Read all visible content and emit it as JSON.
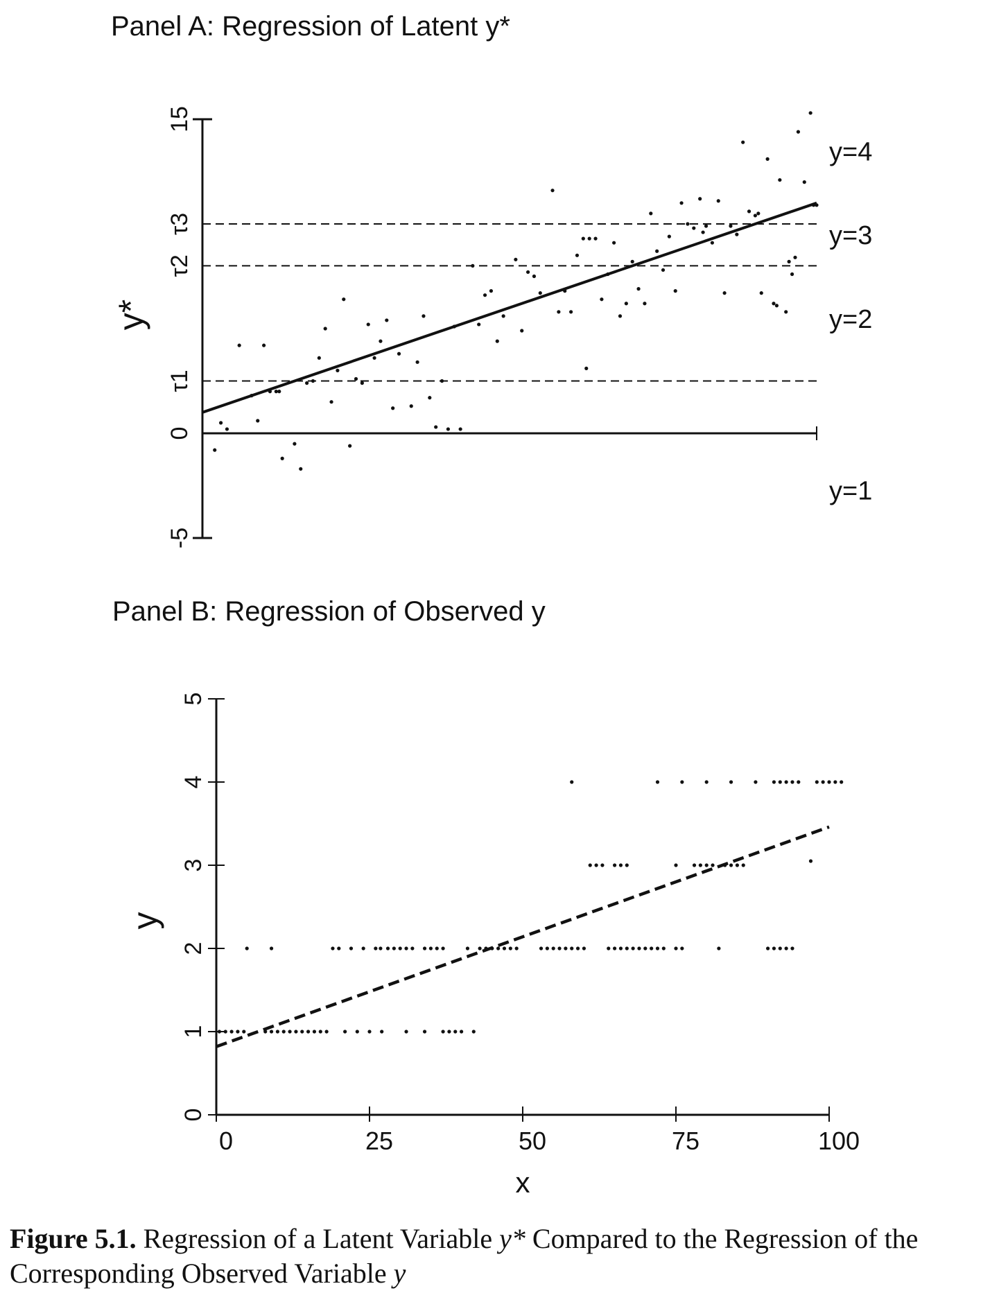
{
  "figure": {
    "caption_label": "Figure 5.1.",
    "caption_text_1": " Regression of a Latent Variable ",
    "caption_var_latent": "y*",
    "caption_text_2": " Compared to the Regression of the Corresponding Observed Variable ",
    "caption_var_observed": "y"
  },
  "chart_data": [
    {
      "type": "scatter",
      "title": "Panel A: Regression of Latent y*",
      "xlabel": "",
      "ylabel": "y*",
      "xlim": [
        0,
        100
      ],
      "ylim": [
        -5,
        15
      ],
      "y_ticks": [
        "-5",
        "0",
        "τ1",
        "τ2",
        "τ3",
        "15"
      ],
      "thresholds": [
        {
          "label": "τ1",
          "y": 2.5
        },
        {
          "label": "τ2",
          "y": 8.0
        },
        {
          "label": "τ3",
          "y": 10.0
        }
      ],
      "baseline_y": 0,
      "region_labels": [
        {
          "text": "y=4",
          "y": 13.5
        },
        {
          "text": "y=3",
          "y": 9.5
        },
        {
          "text": "y=2",
          "y": 5.5
        },
        {
          "text": "y=1",
          "y": -2.7
        }
      ],
      "regression_line": {
        "style": "solid",
        "x": [
          0,
          100
        ],
        "y": [
          1,
          11
        ]
      },
      "points": [
        [
          2,
          -0.8
        ],
        [
          3,
          0.5
        ],
        [
          4,
          0.2
        ],
        [
          6,
          4.2
        ],
        [
          8,
          1.8
        ],
        [
          9,
          0.6
        ],
        [
          10,
          4.2
        ],
        [
          11,
          2
        ],
        [
          12,
          2
        ],
        [
          12.5,
          2
        ],
        [
          13,
          -1.2
        ],
        [
          15,
          -0.5
        ],
        [
          16,
          -1.7
        ],
        [
          17,
          2.4
        ],
        [
          18,
          2.5
        ],
        [
          19,
          3.6
        ],
        [
          20,
          5
        ],
        [
          21,
          1.5
        ],
        [
          22,
          3
        ],
        [
          23,
          6.4
        ],
        [
          24,
          -0.6
        ],
        [
          25,
          2.6
        ],
        [
          26,
          2.4
        ],
        [
          27,
          5.2
        ],
        [
          28,
          3.6
        ],
        [
          29,
          4.4
        ],
        [
          30,
          5.4
        ],
        [
          31,
          1.2
        ],
        [
          32,
          3.8
        ],
        [
          34,
          1.3
        ],
        [
          35,
          3.4
        ],
        [
          36,
          5.6
        ],
        [
          37,
          1.7
        ],
        [
          38,
          0.3
        ],
        [
          39,
          2.5
        ],
        [
          40,
          0.2
        ],
        [
          41,
          5.1
        ],
        [
          42,
          0.2
        ],
        [
          44,
          8
        ],
        [
          45,
          5.2
        ],
        [
          46,
          6.6
        ],
        [
          47,
          6.8
        ],
        [
          48,
          4.4
        ],
        [
          49,
          5.6
        ],
        [
          51,
          8.3
        ],
        [
          52,
          4.9
        ],
        [
          53,
          7.7
        ],
        [
          54,
          7.5
        ],
        [
          55,
          6.7
        ],
        [
          57,
          11.6
        ],
        [
          58,
          5.8
        ],
        [
          59,
          6.8
        ],
        [
          60,
          5.8
        ],
        [
          61,
          8.5
        ],
        [
          62,
          9.3
        ],
        [
          62.5,
          3.1
        ],
        [
          63,
          9.3
        ],
        [
          64,
          9.3
        ],
        [
          65,
          6.4
        ],
        [
          66,
          7.6
        ],
        [
          67,
          9.1
        ],
        [
          68,
          5.6
        ],
        [
          69,
          6.2
        ],
        [
          70,
          8.2
        ],
        [
          71,
          6.9
        ],
        [
          72,
          6.2
        ],
        [
          73,
          10.5
        ],
        [
          74,
          8.7
        ],
        [
          75,
          7.8
        ],
        [
          76,
          9.4
        ],
        [
          77,
          6.8
        ],
        [
          78,
          11
        ],
        [
          79,
          10
        ],
        [
          80,
          9.8
        ],
        [
          81,
          11.2
        ],
        [
          82,
          9.9
        ],
        [
          83,
          9.1
        ],
        [
          84,
          11.1
        ],
        [
          85,
          6.7
        ],
        [
          86,
          9.9
        ],
        [
          87,
          9.5
        ],
        [
          88,
          13.9
        ],
        [
          89,
          10.6
        ],
        [
          90,
          10.4
        ],
        [
          91,
          6.7
        ],
        [
          92,
          13.1
        ],
        [
          93,
          6.2
        ],
        [
          94,
          12.1
        ],
        [
          95,
          5.8
        ],
        [
          96,
          7.6
        ],
        [
          97,
          14.4
        ],
        [
          98,
          12
        ],
        [
          99,
          15.3
        ],
        [
          99.5,
          10.9
        ],
        [
          100,
          10.9
        ],
        [
          95.5,
          8.2
        ],
        [
          96.5,
          8.4
        ],
        [
          93.5,
          6.1
        ],
        [
          90.5,
          10.5
        ],
        [
          81.5,
          9.6
        ]
      ]
    },
    {
      "type": "scatter",
      "title": "Panel B: Regression of Observed y",
      "xlabel": "x",
      "ylabel": "y",
      "xlim": [
        0,
        100
      ],
      "ylim": [
        0,
        5
      ],
      "x_ticks": [
        "0",
        "25",
        "50",
        "75",
        "100"
      ],
      "y_ticks": [
        "0",
        "1",
        "2",
        "3",
        "4",
        "5"
      ],
      "regression_line": {
        "style": "dashed",
        "x": [
          0,
          100
        ],
        "y": [
          0.82,
          3.46
        ]
      },
      "points": [
        [
          0.5,
          1
        ],
        [
          1.5,
          1
        ],
        [
          2.5,
          1
        ],
        [
          3.5,
          1
        ],
        [
          4.5,
          1
        ],
        [
          8,
          1
        ],
        [
          9,
          1
        ],
        [
          10,
          1
        ],
        [
          11,
          1
        ],
        [
          12,
          1
        ],
        [
          13,
          1
        ],
        [
          14,
          1
        ],
        [
          15,
          1
        ],
        [
          16,
          1
        ],
        [
          17,
          1
        ],
        [
          18,
          1
        ],
        [
          21,
          1
        ],
        [
          23,
          1
        ],
        [
          25,
          1
        ],
        [
          27,
          1
        ],
        [
          31,
          1
        ],
        [
          34,
          1
        ],
        [
          37,
          1
        ],
        [
          38,
          1
        ],
        [
          39,
          1
        ],
        [
          40,
          1
        ],
        [
          42,
          1
        ],
        [
          5,
          2
        ],
        [
          9,
          2
        ],
        [
          19,
          2
        ],
        [
          20,
          2
        ],
        [
          22,
          2
        ],
        [
          24,
          2
        ],
        [
          26,
          2
        ],
        [
          26.8,
          2
        ],
        [
          28,
          2
        ],
        [
          29,
          2
        ],
        [
          30,
          2
        ],
        [
          31,
          2
        ],
        [
          32,
          2
        ],
        [
          34,
          2
        ],
        [
          35,
          2
        ],
        [
          36,
          2
        ],
        [
          37,
          2
        ],
        [
          41,
          2
        ],
        [
          43,
          2
        ],
        [
          44,
          2
        ],
        [
          45,
          2
        ],
        [
          46,
          2
        ],
        [
          47,
          2
        ],
        [
          48,
          2
        ],
        [
          49,
          2
        ],
        [
          53,
          2
        ],
        [
          54,
          2
        ],
        [
          55,
          2
        ],
        [
          56,
          2
        ],
        [
          57,
          2
        ],
        [
          58,
          2
        ],
        [
          59,
          2
        ],
        [
          60,
          2
        ],
        [
          64,
          2
        ],
        [
          65,
          2
        ],
        [
          66,
          2
        ],
        [
          67,
          2
        ],
        [
          68,
          2
        ],
        [
          69,
          2
        ],
        [
          70,
          2
        ],
        [
          71,
          2
        ],
        [
          72,
          2
        ],
        [
          73,
          2
        ],
        [
          75,
          2
        ],
        [
          76,
          2
        ],
        [
          82,
          2
        ],
        [
          90,
          2
        ],
        [
          91,
          2
        ],
        [
          92,
          2
        ],
        [
          93,
          2
        ],
        [
          94,
          2
        ],
        [
          61,
          3
        ],
        [
          62,
          3
        ],
        [
          63,
          3
        ],
        [
          65,
          3
        ],
        [
          66,
          3
        ],
        [
          67,
          3
        ],
        [
          75,
          3
        ],
        [
          78,
          3
        ],
        [
          79,
          3
        ],
        [
          80,
          3
        ],
        [
          81,
          3
        ],
        [
          83,
          3
        ],
        [
          84,
          3
        ],
        [
          85,
          3
        ],
        [
          86,
          3
        ],
        [
          97,
          3.05
        ],
        [
          58,
          4
        ],
        [
          72,
          4
        ],
        [
          76,
          4
        ],
        [
          80,
          4
        ],
        [
          84,
          4
        ],
        [
          88,
          4
        ],
        [
          91,
          4
        ],
        [
          92,
          4
        ],
        [
          93,
          4
        ],
        [
          94,
          4
        ],
        [
          95,
          4
        ],
        [
          98,
          4
        ],
        [
          99,
          4
        ],
        [
          100,
          4
        ],
        [
          101,
          4
        ],
        [
          102,
          4
        ]
      ]
    }
  ]
}
